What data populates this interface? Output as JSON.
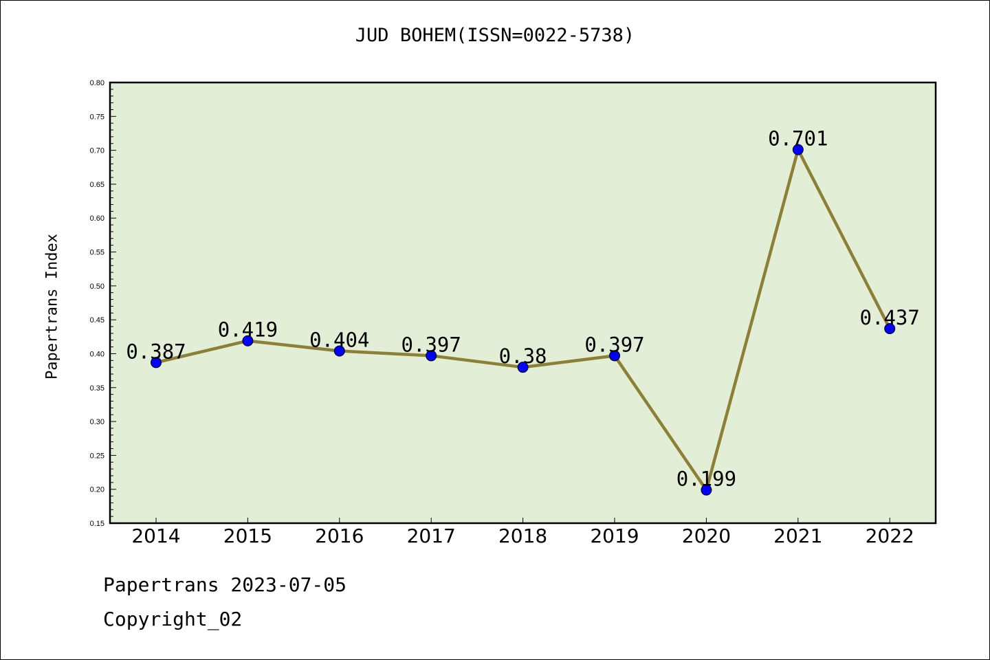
{
  "chart_data": {
    "type": "line",
    "title": "JUD BOHEM(ISSN=0022-5738)",
    "xlabel": "",
    "ylabel": "Papertrans Index",
    "categories": [
      "2014",
      "2015",
      "2016",
      "2017",
      "2018",
      "2019",
      "2020",
      "2021",
      "2022"
    ],
    "values": [
      0.387,
      0.419,
      0.404,
      0.397,
      0.38,
      0.397,
      0.199,
      0.701,
      0.437
    ],
    "data_labels": [
      "0.387",
      "0.419",
      "0.404",
      "0.397",
      "0.38",
      "0.397",
      "0.199",
      "0.701",
      "0.437"
    ],
    "ylim": [
      0.15,
      0.8
    ],
    "yticks": [
      "0.15",
      "0.20",
      "0.25",
      "0.30",
      "0.35",
      "0.40",
      "0.45",
      "0.50",
      "0.55",
      "0.60",
      "0.65",
      "0.70",
      "0.75",
      "0.80"
    ],
    "grid": false,
    "colors": {
      "plot_background": "#e2efd6",
      "line": "#8c7f36",
      "marker": "#0000ff"
    }
  },
  "footer": {
    "date_line": "Papertrans 2023-07-05",
    "copyright_line": "Copyright_02"
  }
}
